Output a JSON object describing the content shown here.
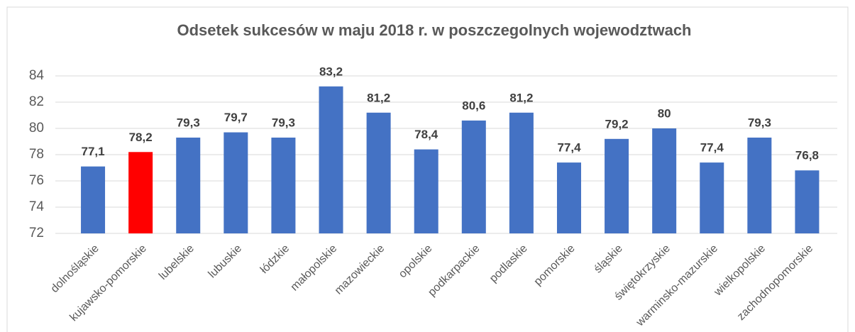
{
  "chart_data": {
    "type": "bar",
    "title": "Odsetek sukcesów w maju 2018 r. w poszczegolnych wojewodztwach",
    "categories": [
      "dolnośląskie",
      "kujawsko-pomorskie",
      "lubelskie",
      "lubuskie",
      "łódzkie",
      "małopolskie",
      "mazowieckie",
      "opolskie",
      "podkarpackie",
      "podlaskie",
      "pomorskie",
      "śląskie",
      "świętokrzyskie",
      "warminsko-mazurskie",
      "wielkopolskie",
      "zachodnopomorskie"
    ],
    "values": [
      77.1,
      78.2,
      79.3,
      79.7,
      79.3,
      83.2,
      81.2,
      78.4,
      80.6,
      81.2,
      77.4,
      79.2,
      80,
      77.4,
      79.3,
      76.8
    ],
    "value_labels": [
      "77,1",
      "78,2",
      "79,3",
      "79,7",
      "79,3",
      "83,2",
      "81,2",
      "78,4",
      "80,6",
      "81,2",
      "77,4",
      "79,2",
      "80",
      "77,4",
      "79,3",
      "76,8"
    ],
    "colors": [
      "#4472c4",
      "#ff0000",
      "#4472c4",
      "#4472c4",
      "#4472c4",
      "#4472c4",
      "#4472c4",
      "#4472c4",
      "#4472c4",
      "#4472c4",
      "#4472c4",
      "#4472c4",
      "#4472c4",
      "#4472c4",
      "#4472c4",
      "#4472c4"
    ],
    "ylim": [
      72,
      84
    ],
    "yticks": [
      72,
      74,
      76,
      78,
      80,
      82,
      84
    ],
    "grid": true
  }
}
